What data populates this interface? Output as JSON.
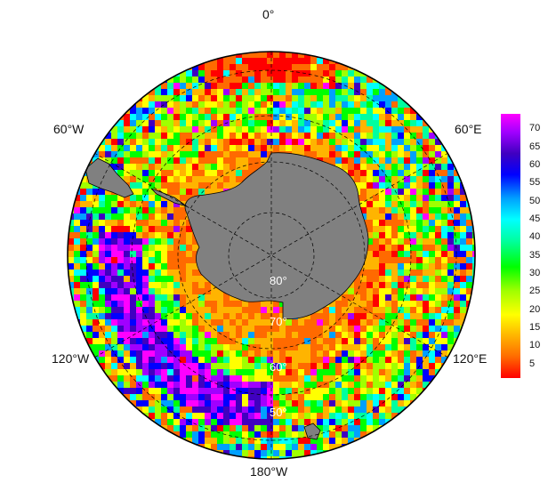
{
  "map": {
    "projection": "south-polar-stereographic",
    "longitude_labels": {
      "top": "0°",
      "upper_left": "60°W",
      "upper_right": "60°E",
      "lower_left": "120°W",
      "lower_right": "120°E",
      "bottom": "180°W"
    },
    "latitude_labels": [
      "80°",
      "70°",
      "60°",
      "50°"
    ],
    "land_color": "#808080",
    "gridline_style": "dashed"
  },
  "colorbar": {
    "ticks": [
      "70",
      "65",
      "60",
      "55",
      "50",
      "45",
      "40",
      "35",
      "30",
      "25",
      "20",
      "15",
      "10",
      "5"
    ],
    "tick_values": [
      70,
      65,
      60,
      55,
      50,
      45,
      40,
      35,
      30,
      25,
      20,
      15,
      10,
      5
    ],
    "range": [
      1,
      74
    ],
    "colors": [
      "#ff0000",
      "#ff6a00",
      "#ffb400",
      "#ffff00",
      "#a0ff00",
      "#00ff00",
      "#00ffa0",
      "#00ffff",
      "#00a0ff",
      "#0000ff",
      "#4000c0",
      "#a000ff",
      "#ff00ff"
    ]
  }
}
